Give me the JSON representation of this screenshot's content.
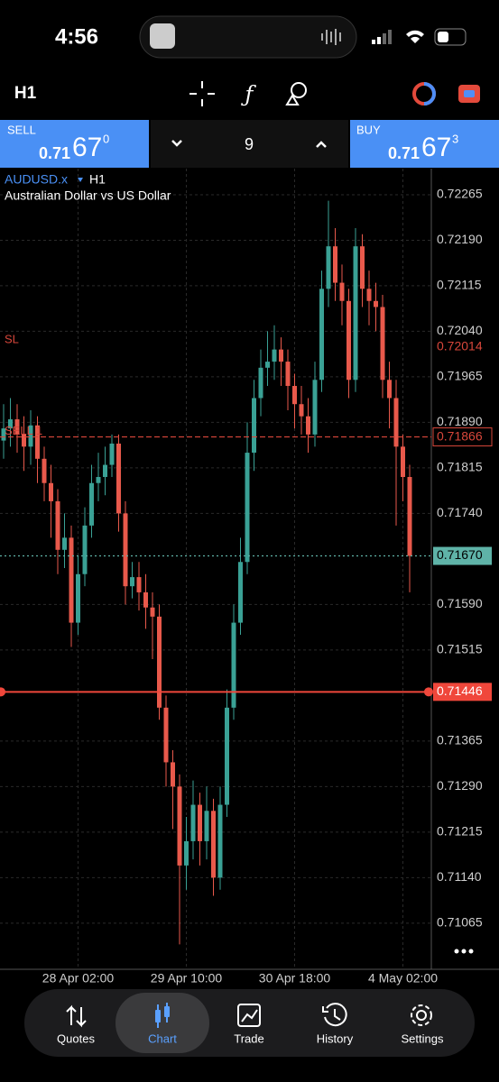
{
  "status_bar": {
    "time": "4:56"
  },
  "toolbar": {
    "timeframe": "H1"
  },
  "trade_panel": {
    "sell": {
      "label": "SELL",
      "price_prefix": "0.71",
      "price_big": "67",
      "price_sup": "0"
    },
    "volume": "9",
    "buy": {
      "label": "BUY",
      "price_prefix": "0.71",
      "price_big": "67",
      "price_sup": "3"
    }
  },
  "chart_data": {
    "type": "candlestick",
    "symbol": "AUDUSD.x",
    "timeframe": "H1",
    "description": "Australian Dollar vs US Dollar",
    "categories": [
      null,
      null,
      null,
      null,
      null,
      null,
      null,
      null,
      null,
      null,
      null,
      "28 Apr 02:00",
      null,
      null,
      null,
      null,
      null,
      null,
      null,
      null,
      null,
      null,
      null,
      null,
      null,
      null,
      null,
      "29 Apr 10:00",
      null,
      null,
      null,
      null,
      null,
      null,
      null,
      null,
      null,
      null,
      null,
      null,
      null,
      null,
      null,
      "30 Apr 18:00",
      null,
      null,
      null,
      null,
      null,
      null,
      null,
      null,
      null,
      null,
      null,
      null,
      null,
      null,
      null,
      "4 May 02:00",
      null
    ],
    "ohlc": [
      [
        0.7186,
        0.7192,
        0.7183,
        0.7188
      ],
      [
        0.7188,
        0.7193,
        0.7185,
        0.71895
      ],
      [
        0.71895,
        0.7192,
        0.7184,
        0.7187
      ],
      [
        0.7187,
        0.719,
        0.7181,
        0.7185
      ],
      [
        0.7185,
        0.7191,
        0.7182,
        0.71885
      ],
      [
        0.71885,
        0.719,
        0.7179,
        0.7183
      ],
      [
        0.7183,
        0.7185,
        0.7176,
        0.7179
      ],
      [
        0.7179,
        0.7182,
        0.717,
        0.7176
      ],
      [
        0.7176,
        0.7178,
        0.7164,
        0.7168
      ],
      [
        0.7168,
        0.7174,
        0.7165,
        0.717
      ],
      [
        0.717,
        0.7172,
        0.7152,
        0.7156
      ],
      [
        0.7156,
        0.7167,
        0.7154,
        0.7164
      ],
      [
        0.7164,
        0.7175,
        0.7162,
        0.7172
      ],
      [
        0.7172,
        0.7182,
        0.717,
        0.7179
      ],
      [
        0.7179,
        0.7184,
        0.7176,
        0.718
      ],
      [
        0.718,
        0.7185,
        0.7177,
        0.7182
      ],
      [
        0.7182,
        0.7187,
        0.718,
        0.71855
      ],
      [
        0.71855,
        0.7187,
        0.7171,
        0.7174
      ],
      [
        0.7174,
        0.7176,
        0.7159,
        0.7162
      ],
      [
        0.7162,
        0.7166,
        0.716,
        0.71635
      ],
      [
        0.71635,
        0.7166,
        0.7158,
        0.7161
      ],
      [
        0.7161,
        0.7164,
        0.7155,
        0.71585
      ],
      [
        0.71585,
        0.7161,
        0.715,
        0.7157
      ],
      [
        0.7157,
        0.7159,
        0.714,
        0.7142
      ],
      [
        0.7142,
        0.7144,
        0.7129,
        0.7133
      ],
      [
        0.7133,
        0.7135,
        0.7122,
        0.7129
      ],
      [
        0.7129,
        0.7131,
        0.7103,
        0.7116
      ],
      [
        0.7116,
        0.7124,
        0.7112,
        0.712
      ],
      [
        0.712,
        0.713,
        0.7117,
        0.7126
      ],
      [
        0.7126,
        0.7128,
        0.7116,
        0.712
      ],
      [
        0.712,
        0.7129,
        0.7117,
        0.7125
      ],
      [
        0.7125,
        0.7127,
        0.7111,
        0.7114
      ],
      [
        0.7114,
        0.7129,
        0.7112,
        0.7126
      ],
      [
        0.7126,
        0.7145,
        0.7124,
        0.7142
      ],
      [
        0.7142,
        0.7159,
        0.714,
        0.7156
      ],
      [
        0.7156,
        0.717,
        0.7154,
        0.7166
      ],
      [
        0.7166,
        0.7189,
        0.7164,
        0.7184
      ],
      [
        0.7184,
        0.7196,
        0.7181,
        0.7193
      ],
      [
        0.7193,
        0.7201,
        0.719,
        0.7198
      ],
      [
        0.7198,
        0.7204,
        0.7195,
        0.7199
      ],
      [
        0.7199,
        0.7205,
        0.7196,
        0.7201
      ],
      [
        0.7201,
        0.7203,
        0.7195,
        0.7199
      ],
      [
        0.7199,
        0.7201,
        0.7191,
        0.7195
      ],
      [
        0.7195,
        0.7197,
        0.7188,
        0.7192
      ],
      [
        0.7192,
        0.7195,
        0.7187,
        0.719
      ],
      [
        0.719,
        0.7193,
        0.7184,
        0.7187
      ],
      [
        0.7187,
        0.7199,
        0.7185,
        0.7196
      ],
      [
        0.7196,
        0.7214,
        0.7194,
        0.7211
      ],
      [
        0.7211,
        0.72255,
        0.7208,
        0.7218
      ],
      [
        0.7218,
        0.7221,
        0.7209,
        0.7212
      ],
      [
        0.7212,
        0.7215,
        0.7205,
        0.7209
      ],
      [
        0.7209,
        0.7211,
        0.7193,
        0.7196
      ],
      [
        0.7196,
        0.7221,
        0.7194,
        0.7218
      ],
      [
        0.7218,
        0.722,
        0.7208,
        0.7211
      ],
      [
        0.7211,
        0.7214,
        0.7205,
        0.7209
      ],
      [
        0.7209,
        0.7212,
        0.7204,
        0.7208
      ],
      [
        0.7208,
        0.721,
        0.7193,
        0.7196
      ],
      [
        0.7196,
        0.7199,
        0.7188,
        0.7193
      ],
      [
        0.7193,
        0.7196,
        0.7172,
        0.7185
      ],
      [
        0.7185,
        0.7187,
        0.7176,
        0.718
      ],
      [
        0.718,
        0.7182,
        0.7161,
        0.7167
      ]
    ],
    "up_color": "#3aa195",
    "down_color": "#e8594b",
    "ylim": [
      0.70989,
      0.72308
    ],
    "yticks": [
      0.72265,
      {
        "value": 0.7219,
        "label": "0.72190"
      },
      0.72115,
      {
        "value": 0.7204,
        "label": "0.72040"
      },
      0.71965,
      {
        "value": 0.7189,
        "label": "0.71890"
      },
      0.71815,
      {
        "value": 0.7174,
        "label": "0.71740"
      },
      {
        "value": 0.7159,
        "label": "0.71590"
      },
      0.71515,
      0.71365,
      {
        "value": 0.7129,
        "label": "0.71290"
      },
      0.71215,
      {
        "value": 0.7114,
        "label": "0.71140"
      },
      0.71065
    ],
    "grid": true,
    "levels": [
      {
        "name": "SL",
        "value": 0.72014,
        "color": "#d9473b",
        "style": "none"
      },
      {
        "name": "SELL 1",
        "value": 0.71866,
        "color": "#d9473b",
        "style": "dashed"
      },
      {
        "value": 0.7167,
        "label": "0.71670",
        "color": "#5fb3a8",
        "style": "dotted"
      },
      {
        "value": 0.71446,
        "color": "#f0473b",
        "style": "solid"
      }
    ]
  },
  "tab_bar": {
    "tabs": [
      "Quotes",
      "Chart",
      "Trade",
      "History",
      "Settings"
    ]
  }
}
